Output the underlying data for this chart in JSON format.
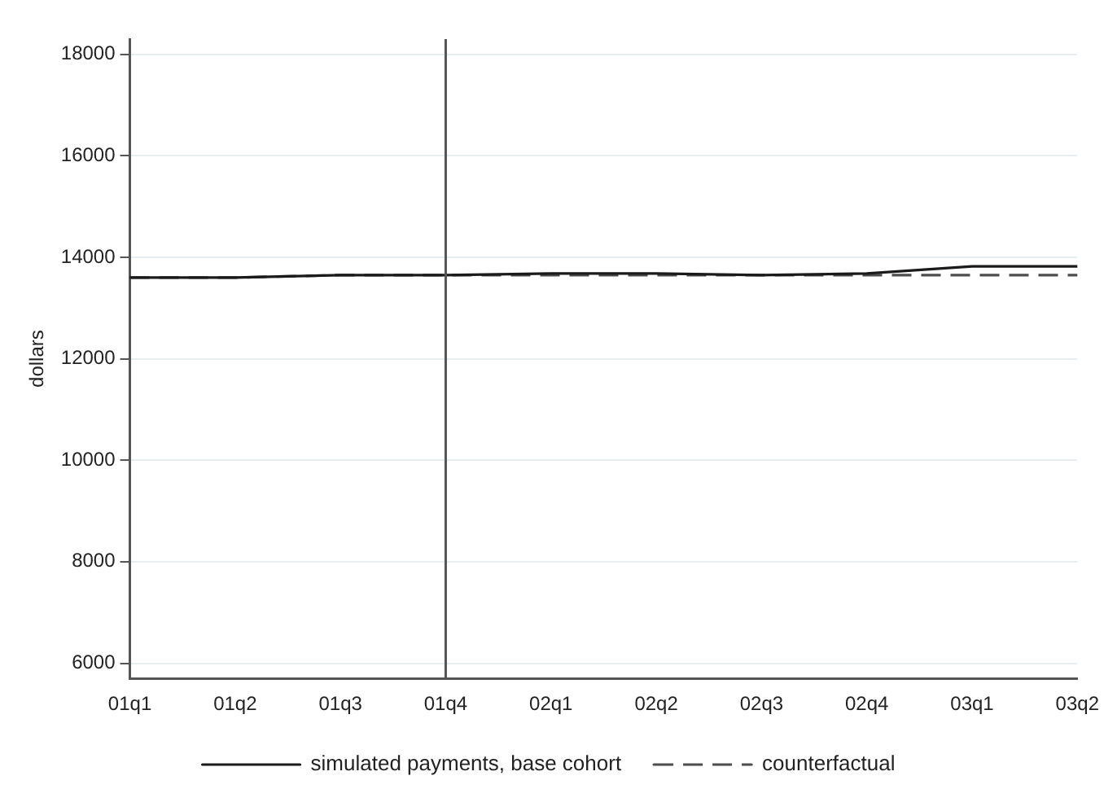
{
  "chart_data": {
    "type": "line",
    "ylabel": "dollars",
    "categories": [
      "01q1",
      "01q2",
      "01q3",
      "01q4",
      "02q1",
      "02q2",
      "02q3",
      "02q4",
      "03q1",
      "03q2"
    ],
    "series": [
      {
        "name": "simulated payments, base cohort",
        "color": "#1a1a1a",
        "line_style": "solid",
        "values": [
          13600,
          13600,
          13650,
          13650,
          13680,
          13680,
          13650,
          13680,
          13820,
          13820
        ]
      },
      {
        "name": "counterfactual",
        "color": "#4d4d4d",
        "line_style": "dashed",
        "values": [
          13600,
          13600,
          13650,
          13650,
          13650,
          13650,
          13650,
          13650,
          13650,
          13650
        ]
      }
    ],
    "ylim": [
      5700,
      18300
    ],
    "yticks": [
      6000,
      8000,
      10000,
      12000,
      14000,
      16000,
      18000
    ],
    "grid": "y",
    "legend": "bottom",
    "marker": "none",
    "ref_lines": [
      {
        "axis": "x",
        "value": "01q4",
        "color": "#555555"
      }
    ]
  }
}
